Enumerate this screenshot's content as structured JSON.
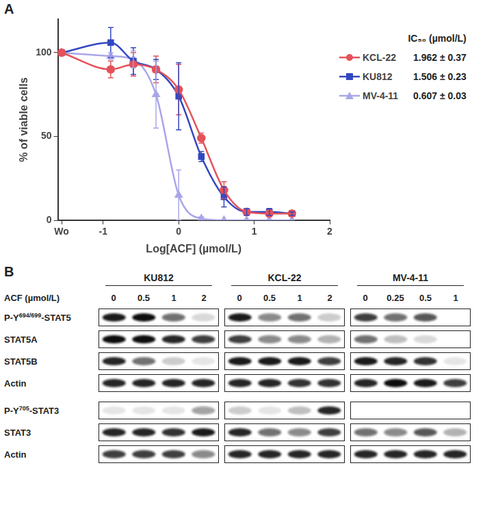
{
  "chart_data": {
    "type": "line",
    "panel_label": "A",
    "x_label": "Log[ACF] (µmol/L)",
    "y_label": "% of viable cells",
    "legend_title": "IC₅₀ (µmol/L)",
    "x": [
      -1.55,
      -0.9,
      -0.6,
      -0.3,
      0,
      0.3,
      0.6,
      0.9,
      1.2,
      1.5
    ],
    "xlim": [
      -1.6,
      2
    ],
    "xticks": [
      {
        "value": -1.55,
        "label": "Wo"
      },
      -1,
      0,
      1,
      2
    ],
    "ylim": [
      0,
      120
    ],
    "yticks": [
      0,
      50,
      100
    ],
    "grid": false,
    "legend": "right",
    "series": [
      {
        "name": "KCL-22",
        "color": "#e4525a",
        "marker": "circle",
        "values": [
          100,
          90,
          93,
          90,
          78,
          49,
          18,
          5,
          4,
          4
        ],
        "errors": [
          0,
          5,
          7,
          8,
          15,
          3,
          5,
          2,
          2,
          1
        ],
        "ic50": "1.962 ± 0.37"
      },
      {
        "name": "KU812",
        "color": "#3347c0",
        "marker": "rect",
        "values": [
          100,
          106,
          95,
          90,
          74,
          38,
          14,
          5,
          5,
          4
        ],
        "errors": [
          0,
          9,
          8,
          6,
          20,
          3,
          6,
          2,
          2,
          1
        ],
        "ic50": "1.506 ± 0.23"
      },
      {
        "name": "MV-4-11",
        "color": "#a9a6e8",
        "marker": "triangle",
        "values": [
          100,
          98,
          96,
          75,
          15,
          1,
          0,
          0,
          0,
          0
        ],
        "errors": [
          0,
          2,
          5,
          20,
          15,
          1,
          0,
          0,
          0,
          0
        ],
        "ic50": "0.607 ± 0.03"
      }
    ]
  },
  "blots": {
    "panel_label": "B",
    "treatment_label": "ACF (µmol/L)",
    "cell_lines": [
      {
        "name": "KU812",
        "doses": [
          0,
          0.5,
          1,
          2
        ]
      },
      {
        "name": "KCL-22",
        "doses": [
          0,
          0.5,
          1,
          2
        ]
      },
      {
        "name": "MV-4-11",
        "doses": [
          0,
          0.25,
          0.5,
          1
        ]
      }
    ],
    "groups": [
      [
        {
          "label": [
            "P-Y",
            "694/699",
            "-STAT5"
          ],
          "intensity": [
            [
              0.95,
              1,
              0.6,
              0.15
            ],
            [
              0.95,
              0.5,
              0.6,
              0.2
            ],
            [
              0.8,
              0.6,
              0.7,
              0
            ]
          ]
        },
        {
          "label": [
            "STAT5A"
          ],
          "intensity": [
            [
              1,
              1,
              0.9,
              0.8
            ],
            [
              0.8,
              0.5,
              0.5,
              0.3
            ],
            [
              0.6,
              0.25,
              0.15,
              0
            ]
          ]
        },
        {
          "label": [
            "STAT5B"
          ],
          "intensity": [
            [
              0.9,
              0.6,
              0.2,
              0.1
            ],
            [
              0.95,
              0.95,
              0.95,
              0.8
            ],
            [
              0.95,
              0.9,
              0.85,
              0.1
            ]
          ]
        },
        {
          "label": [
            "Actin"
          ],
          "intensity": [
            [
              0.9,
              0.9,
              0.9,
              0.9
            ],
            [
              0.9,
              0.9,
              0.85,
              0.85
            ],
            [
              0.9,
              1,
              0.95,
              0.8
            ]
          ]
        }
      ],
      [
        {
          "label": [
            "P-Y",
            "705",
            "-STAT3"
          ],
          "intensity": [
            [
              0.1,
              0.1,
              0.1,
              0.4
            ],
            [
              0.2,
              0.1,
              0.25,
              0.9
            ],
            [
              0,
              0,
              0,
              0
            ]
          ]
        },
        {
          "label": [
            "STAT3"
          ],
          "intensity": [
            [
              0.9,
              0.9,
              0.85,
              0.95
            ],
            [
              0.9,
              0.6,
              0.5,
              0.8
            ],
            [
              0.6,
              0.5,
              0.7,
              0.3
            ]
          ]
        },
        {
          "label": [
            "Actin"
          ],
          "intensity": [
            [
              0.8,
              0.8,
              0.8,
              0.5
            ],
            [
              0.9,
              0.9,
              0.9,
              0.9
            ],
            [
              0.9,
              0.9,
              0.9,
              0.9
            ]
          ]
        }
      ]
    ]
  }
}
